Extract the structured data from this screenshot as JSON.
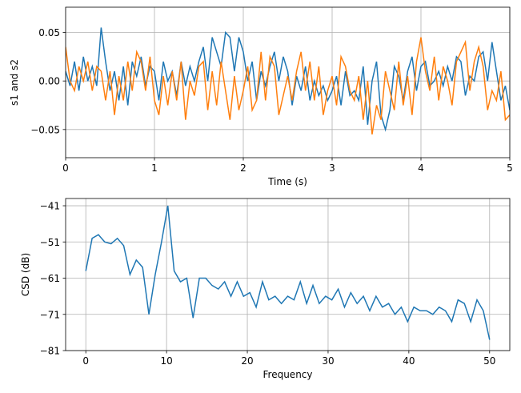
{
  "chart_data": [
    {
      "type": "line",
      "xlabel": "Time (s)",
      "ylabel": "s1 and s2",
      "x": [
        0,
        0.05,
        0.1,
        0.15,
        0.2,
        0.25,
        0.3,
        0.35,
        0.4,
        0.45,
        0.5,
        0.55,
        0.6,
        0.65,
        0.7,
        0.75,
        0.8,
        0.85,
        0.9,
        0.95,
        1,
        1.05,
        1.1,
        1.15,
        1.2,
        1.25,
        1.3,
        1.35,
        1.4,
        1.45,
        1.5,
        1.55,
        1.6,
        1.65,
        1.7,
        1.75,
        1.8,
        1.85,
        1.9,
        1.95,
        2,
        2.05,
        2.1,
        2.15,
        2.2,
        2.25,
        2.3,
        2.35,
        2.4,
        2.45,
        2.5,
        2.55,
        2.6,
        2.65,
        2.7,
        2.75,
        2.8,
        2.85,
        2.9,
        2.95,
        3,
        3.05,
        3.1,
        3.15,
        3.2,
        3.25,
        3.3,
        3.35,
        3.4,
        3.45,
        3.5,
        3.55,
        3.6,
        3.65,
        3.7,
        3.75,
        3.8,
        3.85,
        3.9,
        3.95,
        4,
        4.05,
        4.1,
        4.15,
        4.2,
        4.25,
        4.3,
        4.35,
        4.4,
        4.45,
        4.5,
        4.55,
        4.6,
        4.65,
        4.7,
        4.75,
        4.8,
        4.85,
        4.9,
        4.95,
        5
      ],
      "series": [
        {
          "color": "#1f77b4",
          "values": [
            0.01,
            -0.005,
            0.02,
            -0.01,
            0.025,
            0.0,
            0.015,
            -0.005,
            0.055,
            0.02,
            -0.01,
            0.01,
            -0.02,
            0.015,
            -0.025,
            0.02,
            0.005,
            0.025,
            -0.005,
            0.015,
            0.01,
            -0.02,
            0.02,
            0.0,
            0.01,
            -0.015,
            0.02,
            -0.005,
            0.015,
            0.0,
            0.02,
            0.035,
            0.0,
            0.045,
            0.03,
            0.015,
            0.05,
            0.045,
            0.01,
            0.045,
            0.03,
            0.0,
            0.02,
            -0.02,
            0.01,
            -0.005,
            0.015,
            0.03,
            0.0,
            0.025,
            0.01,
            -0.025,
            0.005,
            -0.01,
            0.015,
            -0.02,
            0.0,
            -0.015,
            -0.005,
            -0.02,
            -0.01,
            0.005,
            -0.025,
            0.01,
            -0.015,
            -0.01,
            -0.02,
            0.015,
            -0.045,
            0.0,
            0.02,
            -0.035,
            -0.05,
            -0.03,
            0.015,
            0.005,
            -0.02,
            0.01,
            0.025,
            -0.01,
            0.015,
            0.02,
            -0.005,
            0.0,
            0.01,
            -0.005,
            0.015,
            0.0,
            0.025,
            0.02,
            -0.015,
            0.005,
            0.0,
            0.025,
            0.03,
            0.0,
            0.04,
            0.01,
            -0.02,
            -0.005,
            -0.03
          ]
        },
        {
          "color": "#ff7f0e",
          "values": [
            0.035,
            0.0,
            -0.01,
            0.015,
            0.0,
            0.02,
            -0.01,
            0.015,
            0.01,
            -0.02,
            0.01,
            -0.035,
            0.005,
            -0.02,
            0.02,
            -0.01,
            0.03,
            0.02,
            -0.01,
            0.025,
            -0.02,
            -0.035,
            0.005,
            -0.025,
            0.01,
            -0.02,
            0.02,
            -0.04,
            0.0,
            -0.015,
            0.015,
            0.02,
            -0.03,
            0.01,
            -0.025,
            0.02,
            -0.01,
            -0.04,
            0.005,
            -0.03,
            -0.01,
            0.015,
            -0.03,
            -0.02,
            0.03,
            -0.02,
            0.025,
            0.015,
            -0.035,
            -0.015,
            0.005,
            -0.02,
            0.01,
            0.03,
            -0.01,
            0.02,
            -0.02,
            0.015,
            -0.035,
            -0.01,
            0.005,
            -0.025,
            0.025,
            0.015,
            -0.01,
            -0.02,
            0.005,
            -0.04,
            0.0,
            -0.055,
            -0.025,
            -0.04,
            0.01,
            -0.01,
            -0.03,
            0.02,
            -0.025,
            0.005,
            -0.035,
            0.02,
            0.045,
            0.01,
            -0.01,
            0.025,
            -0.02,
            0.015,
            0.0,
            -0.025,
            0.02,
            0.03,
            0.04,
            -0.01,
            0.02,
            0.035,
            0.015,
            -0.03,
            -0.01,
            -0.02,
            0.01,
            -0.04,
            -0.035
          ]
        }
      ],
      "xlim": [
        0,
        5
      ],
      "xticks": [
        0,
        1,
        2,
        3,
        4,
        5
      ],
      "ylim": [
        -0.079,
        0.076
      ],
      "yticks": [
        {
          "value": -0.05,
          "label": "−0.05"
        },
        {
          "value": 0,
          "label": "0.00"
        },
        0.05
      ],
      "grid": true
    },
    {
      "type": "line",
      "xlabel": "Frequency",
      "ylabel": "CSD (dB)",
      "x": [
        0,
        0.78125,
        1.5625,
        2.34375,
        3.125,
        3.90625,
        4.6875,
        5.46875,
        6.25,
        7.03125,
        7.8125,
        8.59375,
        9.375,
        10.15625,
        10.9375,
        11.71875,
        12.5,
        13.28125,
        14.0625,
        14.84375,
        15.625,
        16.40625,
        17.1875,
        17.96875,
        18.75,
        19.53125,
        20.3125,
        21.09375,
        21.875,
        22.65625,
        23.4375,
        24.21875,
        25,
        25.78125,
        26.5625,
        27.34375,
        28.125,
        28.90625,
        29.6875,
        30.46875,
        31.25,
        32.03125,
        32.8125,
        33.59375,
        34.375,
        35.15625,
        35.9375,
        36.71875,
        37.5,
        38.28125,
        39.0625,
        39.84375,
        40.625,
        41.40625,
        42.1875,
        42.96875,
        43.75,
        44.53125,
        45.3125,
        46.09375,
        46.875,
        47.65625,
        48.4375,
        49.21875,
        50
      ],
      "series": [
        {
          "color": "#1f77b4",
          "values": [
            -59,
            -50,
            -49,
            -51,
            -51.5,
            -50,
            -52,
            -60,
            -56,
            -58,
            -71,
            -60,
            -51,
            -41,
            -59,
            -62,
            -61,
            -72,
            -61,
            -61,
            -63,
            -64,
            -62,
            -66,
            -62,
            -66,
            -65,
            -69,
            -62,
            -67,
            -66,
            -68,
            -66,
            -67,
            -62,
            -68,
            -63,
            -68,
            -66,
            -67,
            -64,
            -69,
            -65,
            -68,
            -66,
            -70,
            -66,
            -69,
            -68,
            -71,
            -69,
            -73,
            -69,
            -70,
            -70,
            -71,
            -69,
            -70,
            -73,
            -67,
            -68,
            -73,
            -67,
            -70,
            -78
          ]
        }
      ],
      "xlim": [
        -2.5,
        52.5
      ],
      "xticks": [
        0,
        10,
        20,
        30,
        40,
        50
      ],
      "ylim": [
        -81,
        -39
      ],
      "yticks": [
        {
          "value": -81,
          "label": "−81"
        },
        {
          "value": -71,
          "label": "−71"
        },
        {
          "value": -61,
          "label": "−61"
        },
        {
          "value": -51,
          "label": "−51"
        },
        {
          "value": -41,
          "label": "−41"
        }
      ],
      "grid": true
    }
  ]
}
